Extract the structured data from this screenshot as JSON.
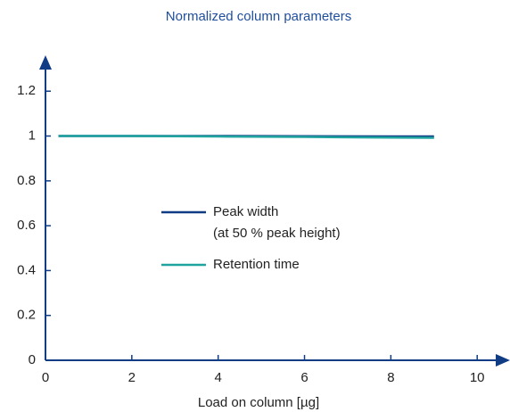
{
  "chart_data": {
    "type": "line",
    "title": "Normalized column parameters",
    "x_label": "Load on column [µg]",
    "x": [
      0.3,
      1,
      2,
      4,
      6,
      8,
      9
    ],
    "series": [
      {
        "name": "Peak width\n(at 50 % peak height)",
        "color": "#0f3c85",
        "values": [
          1,
          1,
          1,
          1,
          0.999,
          0.998,
          0.998
        ]
      },
      {
        "name": "Retention time",
        "color": "#1ea39f",
        "values": [
          1,
          1,
          1,
          0.998,
          0.996,
          0.993,
          0.992
        ]
      }
    ],
    "xlim": [
      0,
      10.76
    ],
    "xticks": [
      0,
      2,
      4,
      6,
      8,
      10
    ],
    "ylim": [
      0,
      1.36
    ],
    "yticks": [
      0,
      0.2,
      0.4,
      0.6,
      0.8,
      1,
      1.2
    ],
    "axis_color": "#0f3c85",
    "grid": false
  }
}
